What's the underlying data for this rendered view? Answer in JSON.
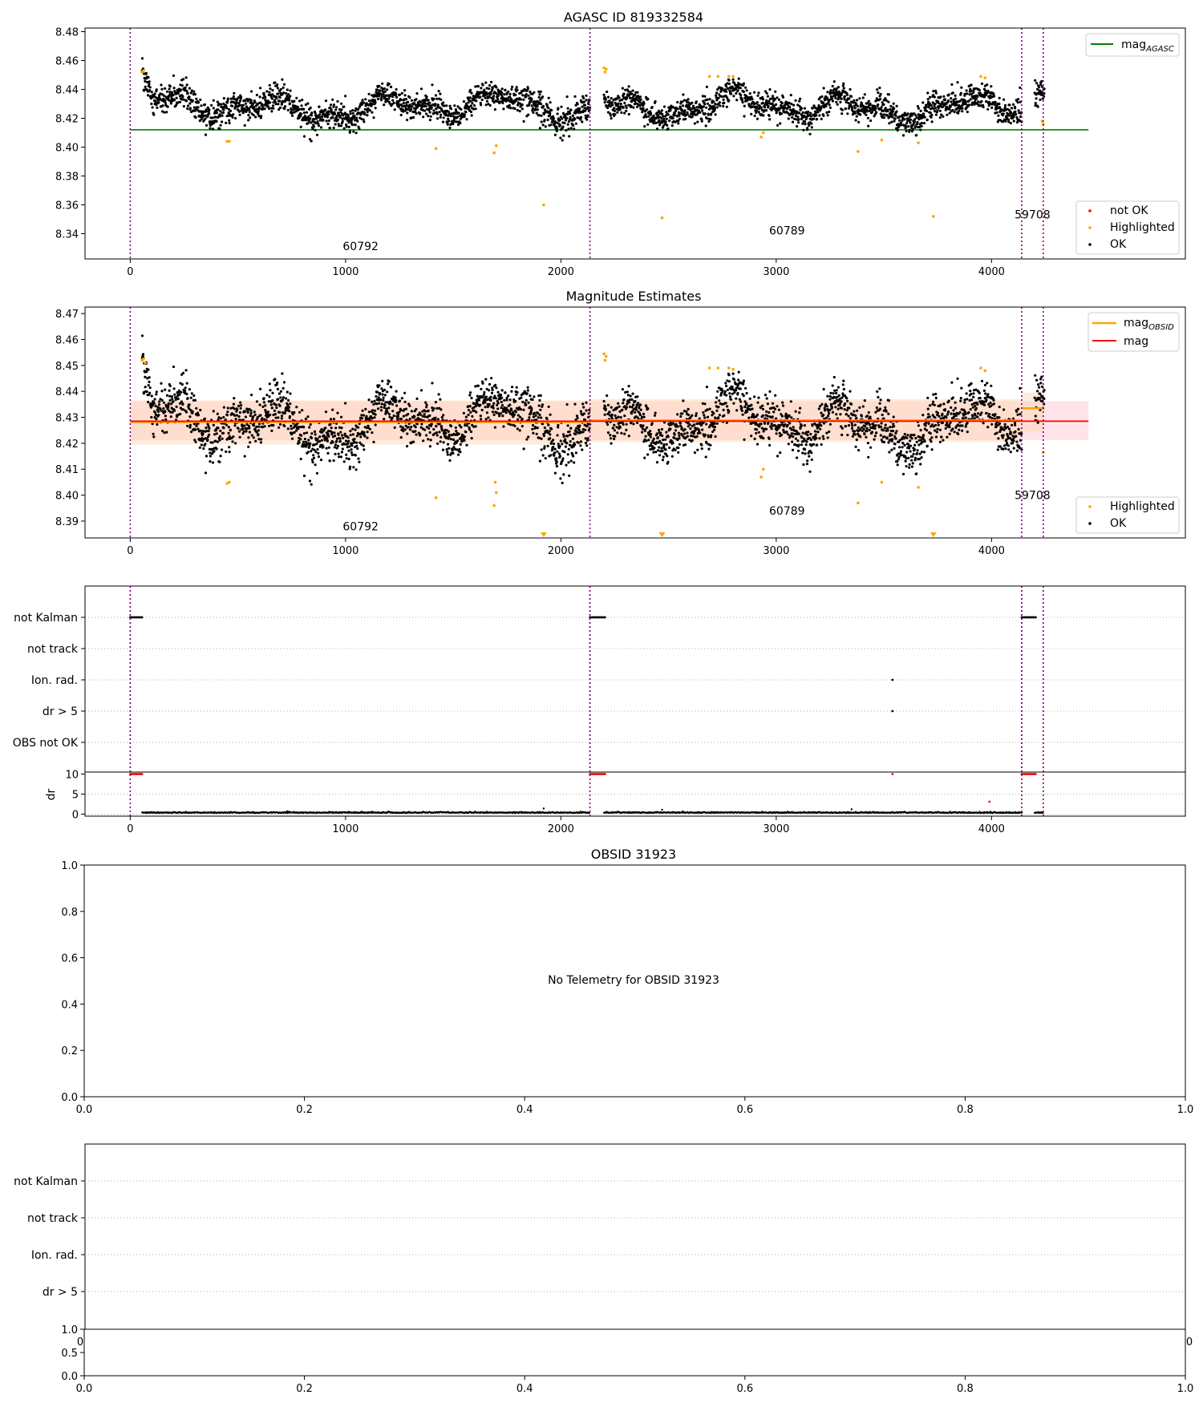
{
  "figure": {
    "background": "#ffffff",
    "colors": {
      "ok": "#000000",
      "highlighted": "#ffa500",
      "not_ok": "#ff0000",
      "agasc_line": "#008000",
      "mag_line": "#ff0000",
      "obsid_line": "#ffa500",
      "obs_boundary": "#800080",
      "band_fill": "#ffc0cb",
      "band_fill_obs": "#ffdab9",
      "grid": "#b0b0b0"
    }
  },
  "chart_data": [
    {
      "type": "scatter",
      "title": "AGASC ID 819332584",
      "xlabel": "",
      "ylabel": "",
      "xlim": [
        -210,
        4900
      ],
      "ylim": [
        8.3225,
        8.4825
      ],
      "xticks": [
        "0",
        "1000",
        "2000",
        "3000",
        "4000"
      ],
      "yticks": [
        "8.34",
        "8.36",
        "8.38",
        "8.40",
        "8.42",
        "8.44",
        "8.46",
        "8.48"
      ],
      "obs_boundaries": [
        0,
        2135,
        4140,
        4240
      ],
      "obs_labels": [
        {
          "text": "60792",
          "x": 1070,
          "y": 8.3285
        },
        {
          "text": "60789",
          "x": 3050,
          "y": 8.3395
        },
        {
          "text": "59708",
          "x": 4190,
          "y": 8.3505
        }
      ],
      "segments": [
        {
          "x0": 55,
          "x1": 2135,
          "mean": 8.428
        },
        {
          "x0": 2200,
          "x1": 4140,
          "mean": 8.428
        },
        {
          "x0": 4200,
          "x1": 4245,
          "mean": 8.434
        }
      ],
      "agasc_mag": 8.412,
      "agasc_line_x": [
        0,
        4450
      ],
      "highlighted_points": [
        {
          "x": 55,
          "y": 8.452
        },
        {
          "x": 62,
          "y": 8.453
        },
        {
          "x": 450,
          "y": 8.404
        },
        {
          "x": 460,
          "y": 8.404
        },
        {
          "x": 1420,
          "y": 8.399
        },
        {
          "x": 1690,
          "y": 8.396
        },
        {
          "x": 1700,
          "y": 8.401
        },
        {
          "x": 1920,
          "y": 8.36
        },
        {
          "x": 2200,
          "y": 8.455
        },
        {
          "x": 2205,
          "y": 8.452
        },
        {
          "x": 2210,
          "y": 8.454
        },
        {
          "x": 2470,
          "y": 8.351
        },
        {
          "x": 2690,
          "y": 8.449
        },
        {
          "x": 2730,
          "y": 8.449
        },
        {
          "x": 2780,
          "y": 8.449
        },
        {
          "x": 2800,
          "y": 8.449
        },
        {
          "x": 2930,
          "y": 8.407
        },
        {
          "x": 2940,
          "y": 8.41
        },
        {
          "x": 3380,
          "y": 8.397
        },
        {
          "x": 3490,
          "y": 8.405
        },
        {
          "x": 3660,
          "y": 8.403
        },
        {
          "x": 3730,
          "y": 8.352
        },
        {
          "x": 3950,
          "y": 8.449
        },
        {
          "x": 3970,
          "y": 8.448
        },
        {
          "x": 4240,
          "y": 8.416
        },
        {
          "x": 4235,
          "y": 8.418
        }
      ],
      "not_ok_points": [],
      "legends": [
        {
          "position": "top-right",
          "entries": [
            {
              "label": "mag",
              "sub": "AGASC",
              "kind": "line",
              "color": "#008000"
            }
          ]
        },
        {
          "position": "bottom-right",
          "entries": [
            {
              "label": "not OK",
              "kind": "dot",
              "color": "#ff0000"
            },
            {
              "label": "Highlighted",
              "kind": "dot",
              "color": "#ffa500"
            },
            {
              "label": "OK",
              "kind": "dot",
              "color": "#000000"
            }
          ]
        }
      ]
    },
    {
      "type": "scatter",
      "title": "Magnitude Estimates",
      "xlabel": "",
      "ylabel": "",
      "xlim": [
        -210,
        4900
      ],
      "ylim": [
        8.3835,
        8.4725
      ],
      "xticks": [
        "0",
        "1000",
        "2000",
        "3000",
        "4000"
      ],
      "yticks": [
        "8.39",
        "8.40",
        "8.41",
        "8.42",
        "8.43",
        "8.44",
        "8.45",
        "8.46",
        "8.47"
      ],
      "obs_boundaries": [
        0,
        2135,
        4140,
        4240
      ],
      "obs_labels": [
        {
          "text": "60792",
          "x": 1070,
          "y": 8.3865
        },
        {
          "text": "60789",
          "x": 3050,
          "y": 8.3925
        },
        {
          "text": "59708",
          "x": 4190,
          "y": 8.3985
        }
      ],
      "mag": 8.4285,
      "mag_band": [
        8.4212,
        8.4362
      ],
      "mag_line_x": [
        0,
        4450
      ],
      "obsid_segments": [
        {
          "x0": 0,
          "x1": 2135,
          "mean": 8.4282,
          "band": [
            8.4195,
            8.4365
          ]
        },
        {
          "x0": 2135,
          "x1": 4140,
          "mean": 8.4288,
          "band": [
            8.4205,
            8.437
          ]
        },
        {
          "x0": 4140,
          "x1": 4240,
          "mean": 8.4335,
          "band": [
            8.4245,
            8.4395
          ]
        }
      ],
      "highlighted_points": [
        {
          "x": 55,
          "y": 8.452
        },
        {
          "x": 62,
          "y": 8.4525
        },
        {
          "x": 70,
          "y": 8.451
        },
        {
          "x": 450,
          "y": 8.4045
        },
        {
          "x": 460,
          "y": 8.405
        },
        {
          "x": 1420,
          "y": 8.399
        },
        {
          "x": 1690,
          "y": 8.396
        },
        {
          "x": 1700,
          "y": 8.401
        },
        {
          "x": 1695,
          "y": 8.405
        },
        {
          "x": 2200,
          "y": 8.4545
        },
        {
          "x": 2205,
          "y": 8.452
        },
        {
          "x": 2210,
          "y": 8.4535
        },
        {
          "x": 2690,
          "y": 8.449
        },
        {
          "x": 2730,
          "y": 8.449
        },
        {
          "x": 2780,
          "y": 8.449
        },
        {
          "x": 2800,
          "y": 8.4485
        },
        {
          "x": 2930,
          "y": 8.407
        },
        {
          "x": 2940,
          "y": 8.41
        },
        {
          "x": 3380,
          "y": 8.397
        },
        {
          "x": 3490,
          "y": 8.405
        },
        {
          "x": 3660,
          "y": 8.403
        },
        {
          "x": 3950,
          "y": 8.449
        },
        {
          "x": 3970,
          "y": 8.448
        },
        {
          "x": 4240,
          "y": 8.4165
        }
      ],
      "clipped_markers": [
        {
          "x": 1920
        },
        {
          "x": 2470
        },
        {
          "x": 3730
        }
      ],
      "legends": [
        {
          "position": "top-right",
          "entries": [
            {
              "label": "mag",
              "sub": "OBSID",
              "kind": "line",
              "color": "#ffa500"
            },
            {
              "label": "mag",
              "sub": "",
              "kind": "line",
              "color": "#ff0000"
            }
          ]
        },
        {
          "position": "bottom-right",
          "entries": [
            {
              "label": "Highlighted",
              "kind": "dot",
              "color": "#ffa500"
            },
            {
              "label": "OK",
              "kind": "dot",
              "color": "#000000"
            }
          ]
        }
      ]
    },
    {
      "type": "scatter",
      "title": "",
      "xlabel": "",
      "ylabel": "",
      "xlim": [
        -210,
        4900
      ],
      "flag_rows": [
        "not Kalman",
        "not track",
        "Ion. rad.",
        "dr > 5",
        "OBS not OK"
      ],
      "flag_segments": [
        {
          "row": "not Kalman",
          "x0": 0,
          "x1": 55
        },
        {
          "row": "not Kalman",
          "x0": 2135,
          "x1": 2205
        },
        {
          "row": "not Kalman",
          "x0": 4140,
          "x1": 4205
        }
      ],
      "flag_points": [
        {
          "row": "Ion. rad.",
          "x": 3540
        },
        {
          "row": "dr > 5",
          "x": 3540
        }
      ],
      "obs_boundaries": [
        0,
        2135,
        4140,
        4240
      ]
    },
    {
      "type": "scatter",
      "title": "",
      "xlabel": "",
      "ylabel": "dr",
      "xlim": [
        -210,
        4900
      ],
      "ylim": [
        -0.5,
        10.5
      ],
      "xticks": [
        "0",
        "1000",
        "2000",
        "3000",
        "4000"
      ],
      "yticks": [
        "0",
        "5",
        "10"
      ],
      "dr_baseline": 0.3,
      "dr_ranges": [
        [
          55,
          2135
        ],
        [
          2200,
          4140
        ],
        [
          4200,
          4240
        ]
      ],
      "dr_red_segments": [
        {
          "x0": 0,
          "x1": 55,
          "y": 10
        },
        {
          "x0": 2135,
          "x1": 2205,
          "y": 10
        },
        {
          "x0": 4140,
          "x1": 4205,
          "y": 10
        }
      ],
      "dr_red_points": [
        {
          "x": 3540,
          "y": 10
        },
        {
          "x": 3990,
          "y": 3.1
        }
      ],
      "dr_outliers": [
        {
          "x": 1920,
          "y": 1.4
        },
        {
          "x": 2470,
          "y": 1.1
        },
        {
          "x": 3350,
          "y": 1.2
        }
      ],
      "obs_boundaries": [
        0,
        2135,
        4140,
        4240
      ]
    },
    {
      "type": "scatter",
      "title": "OBSID 31923",
      "xlabel": "",
      "ylabel": "",
      "xlim": [
        0,
        1
      ],
      "ylim": [
        0,
        1
      ],
      "xticks": [
        "0.0",
        "0.2",
        "0.4",
        "0.6",
        "0.8",
        "1.0"
      ],
      "yticks": [
        "0.0",
        "0.2",
        "0.4",
        "0.6",
        "0.8",
        "1.0"
      ],
      "message": "No Telemetry for OBSID 31923"
    },
    {
      "type": "scatter",
      "title": "",
      "xlabel": "",
      "ylabel": "",
      "flag_rows": [
        "not Kalman",
        "not track",
        "Ion. rad.",
        "dr > 5"
      ],
      "overlap_ticks": {
        "left": "0",
        "right": "0"
      }
    },
    {
      "type": "scatter",
      "title": "",
      "xlabel": "",
      "ylabel": "",
      "xlim": [
        0,
        1
      ],
      "ylim": [
        0,
        1
      ],
      "xticks": [
        "0.0",
        "0.2",
        "0.4",
        "0.6",
        "0.8",
        "1.0"
      ],
      "yticks": [
        "0.0",
        "0.5",
        "1.0"
      ]
    }
  ]
}
